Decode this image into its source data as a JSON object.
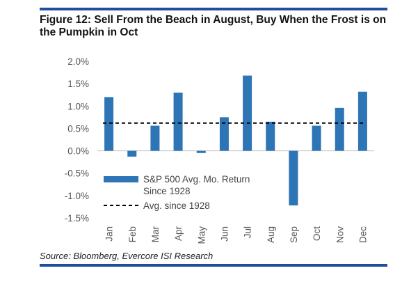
{
  "figure": {
    "title": "Figure 12: Sell From the Beach in August, Buy When the Frost is on the Pumpkin in Oct",
    "source": "Source: Bloomberg, Evercore ISI Research"
  },
  "chart_data": {
    "type": "bar",
    "categories": [
      "Jan",
      "Feb",
      "Mar",
      "Apr",
      "May",
      "Jun",
      "Jul",
      "Aug",
      "Sep",
      "Oct",
      "Nov",
      "Dec"
    ],
    "series": [
      {
        "name": "S&P 500 Avg. Mo. Return Since 1928",
        "values": [
          1.2,
          -0.13,
          0.56,
          1.3,
          -0.05,
          0.75,
          1.68,
          0.65,
          -1.22,
          0.56,
          0.96,
          1.32
        ]
      }
    ],
    "reference_line": {
      "name": "Avg. since 1928",
      "value": 0.62,
      "style": "dashed"
    },
    "y_ticks": [
      "2.0%",
      "1.5%",
      "1.0%",
      "0.5%",
      "0.0%",
      "-0.5%",
      "-1.0%",
      "-1.5%"
    ],
    "ylim": [
      -1.5,
      2.0
    ],
    "grid": false,
    "legend": {
      "placement": "bottom-left",
      "bar_label_line1": "S&P 500 Avg. Mo. Return",
      "bar_label_line2": "Since 1928",
      "line_label": "Avg. since 1928"
    },
    "colors": {
      "bar": "#2e75b6",
      "line": "#000000",
      "axis": "#bfbfbf"
    }
  }
}
